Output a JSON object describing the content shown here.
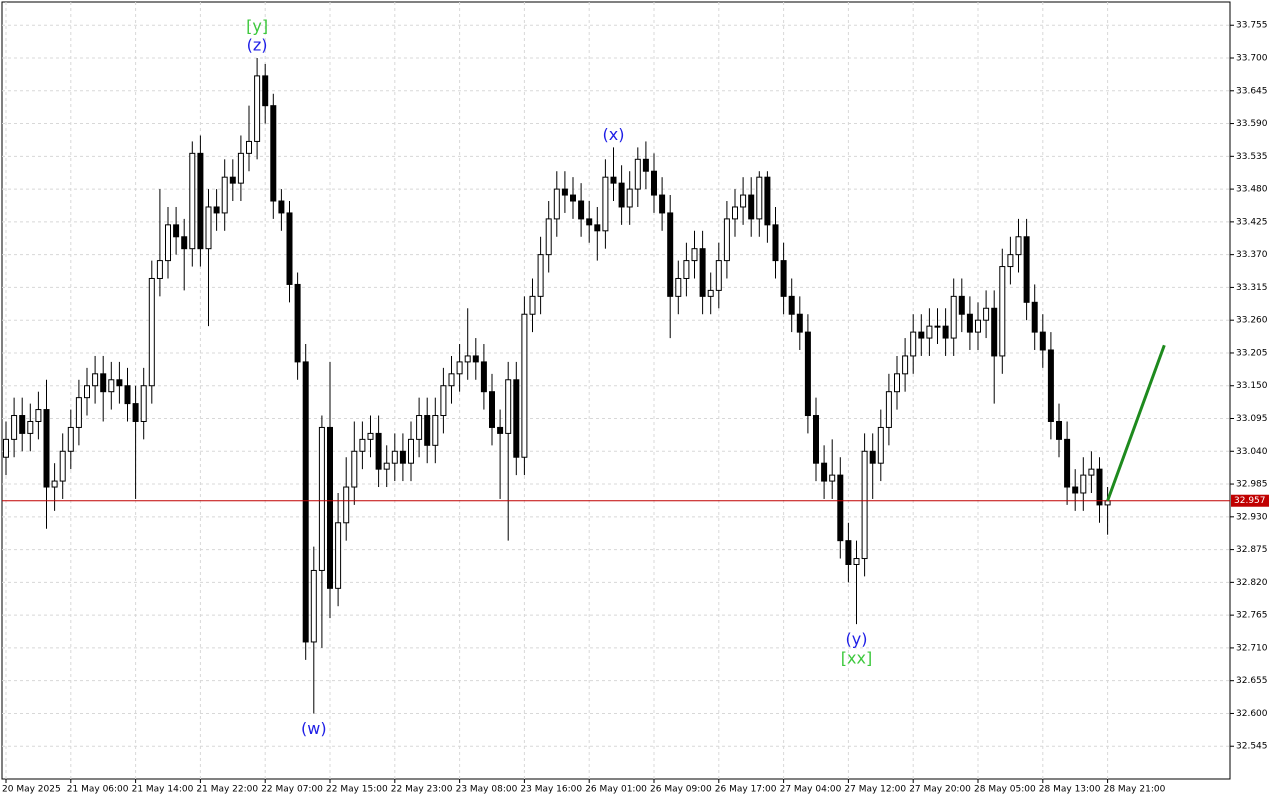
{
  "chart_data": {
    "type": "candlestick",
    "categories": [
      "20 May 2025",
      null,
      null,
      null,
      null,
      null,
      null,
      null,
      "21 May 06:00",
      null,
      null,
      null,
      null,
      null,
      null,
      null,
      "21 May 14:00",
      null,
      null,
      null,
      null,
      null,
      null,
      null,
      "21 May 22:00",
      null,
      null,
      null,
      null,
      null,
      null,
      null,
      "22 May 07:00",
      null,
      null,
      null,
      null,
      null,
      null,
      null,
      "22 May 15:00",
      null,
      null,
      null,
      null,
      null,
      null,
      null,
      "22 May 23:00",
      null,
      null,
      null,
      null,
      null,
      null,
      null,
      "23 May 08:00",
      null,
      null,
      null,
      null,
      null,
      null,
      null,
      "23 May 16:00",
      null,
      null,
      null,
      null,
      null,
      null,
      null,
      "26 May 01:00",
      null,
      null,
      null,
      null,
      null,
      null,
      null,
      "26 May 09:00",
      null,
      null,
      null,
      null,
      null,
      null,
      null,
      "26 May 17:00",
      null,
      null,
      null,
      null,
      null,
      null,
      null,
      "27 May 04:00",
      null,
      null,
      null,
      null,
      null,
      null,
      null,
      "27 May 12:00",
      null,
      null,
      null,
      null,
      null,
      null,
      null,
      "27 May 20:00",
      null,
      null,
      null,
      null,
      null,
      null,
      null,
      "28 May 05:00",
      null,
      null,
      null,
      null,
      null,
      null,
      null,
      "28 May 13:00",
      null,
      null,
      null,
      null,
      null,
      null,
      null,
      "28 May 21:00"
    ],
    "open": [
      33.03,
      33.06,
      33.1,
      33.07,
      33.09,
      33.11,
      32.98,
      32.99,
      33.04,
      33.08,
      33.13,
      33.15,
      33.17,
      33.14,
      33.16,
      33.15,
      33.12,
      33.09,
      33.15,
      33.33,
      33.36,
      33.42,
      33.4,
      33.38,
      33.54,
      33.38,
      33.45,
      33.44,
      33.5,
      33.49,
      33.54,
      33.56,
      33.67,
      33.62,
      33.46,
      33.44,
      33.32,
      33.19,
      32.72,
      32.84,
      33.08,
      32.81,
      32.92,
      32.98,
      33.04,
      33.06,
      33.07,
      33.01,
      33.02,
      33.04,
      33.02,
      33.06,
      33.1,
      33.05,
      33.1,
      33.15,
      33.17,
      33.19,
      33.2,
      33.19,
      33.14,
      33.08,
      33.07,
      33.16,
      33.03,
      33.27,
      33.3,
      33.37,
      33.43,
      33.48,
      33.47,
      33.46,
      33.43,
      33.42,
      33.41,
      33.5,
      33.49,
      33.45,
      33.48,
      33.53,
      33.51,
      33.47,
      33.44,
      33.3,
      33.33,
      33.36,
      33.38,
      33.3,
      33.31,
      33.36,
      33.43,
      33.45,
      33.47,
      33.43,
      33.5,
      33.42,
      33.36,
      33.3,
      33.27,
      33.24,
      33.1,
      33.02,
      32.99,
      33.0,
      32.89,
      32.85,
      32.86,
      33.04,
      33.02,
      33.08,
      33.14,
      33.17,
      33.2,
      33.24,
      33.23,
      33.25,
      33.25,
      33.23,
      33.3,
      33.27,
      33.24,
      33.26,
      33.28,
      33.2,
      33.35,
      33.37,
      33.4,
      33.29,
      33.24,
      33.21,
      33.09,
      33.06,
      32.98,
      32.97,
      33.0,
      33.01,
      32.95
    ],
    "high": [
      33.09,
      33.13,
      33.13,
      33.12,
      33.14,
      33.16,
      33.02,
      33.07,
      33.11,
      33.16,
      33.18,
      33.2,
      33.2,
      33.19,
      33.19,
      33.18,
      33.15,
      33.18,
      33.36,
      33.48,
      33.45,
      33.45,
      33.43,
      33.56,
      33.57,
      33.48,
      33.48,
      33.53,
      33.53,
      33.57,
      33.62,
      33.7,
      33.69,
      33.64,
      33.48,
      33.46,
      33.34,
      33.22,
      32.88,
      33.1,
      33.19,
      32.97,
      33.03,
      33.09,
      33.09,
      33.1,
      33.1,
      33.05,
      33.07,
      33.07,
      33.09,
      33.13,
      33.13,
      33.13,
      33.18,
      33.2,
      33.22,
      33.28,
      33.23,
      33.22,
      33.17,
      33.11,
      33.19,
      33.19,
      33.3,
      33.33,
      33.4,
      33.46,
      33.51,
      33.51,
      33.5,
      33.49,
      33.46,
      33.45,
      33.53,
      33.55,
      33.52,
      33.51,
      33.55,
      33.56,
      33.54,
      33.5,
      33.47,
      33.36,
      33.39,
      33.41,
      33.41,
      33.34,
      33.39,
      33.46,
      33.48,
      33.5,
      33.5,
      33.51,
      33.51,
      33.45,
      33.39,
      33.33,
      33.3,
      33.27,
      33.13,
      33.05,
      33.06,
      33.03,
      32.92,
      32.89,
      33.07,
      33.07,
      33.11,
      33.17,
      33.2,
      33.23,
      33.27,
      33.27,
      33.28,
      33.28,
      33.28,
      33.33,
      33.33,
      33.3,
      33.29,
      33.31,
      33.31,
      33.38,
      33.4,
      33.43,
      33.43,
      33.32,
      33.27,
      33.24,
      33.12,
      33.09,
      33.01,
      33.03,
      33.04,
      33.03,
      32.98
    ],
    "low": [
      33.0,
      33.03,
      33.04,
      33.04,
      33.06,
      32.91,
      32.94,
      32.96,
      33.01,
      33.05,
      33.1,
      33.12,
      33.09,
      33.11,
      33.12,
      33.09,
      32.96,
      33.06,
      33.12,
      33.3,
      33.33,
      33.37,
      33.31,
      33.35,
      33.35,
      33.25,
      33.41,
      33.41,
      33.46,
      33.46,
      33.51,
      33.53,
      33.59,
      33.43,
      33.41,
      33.29,
      33.16,
      32.69,
      32.6,
      32.71,
      32.76,
      32.78,
      32.89,
      32.95,
      33.01,
      33.03,
      32.98,
      32.98,
      32.99,
      32.99,
      32.99,
      33.03,
      33.02,
      33.02,
      33.07,
      33.12,
      33.14,
      33.16,
      33.16,
      33.11,
      33.05,
      32.96,
      32.89,
      33.0,
      33.0,
      33.24,
      33.27,
      33.34,
      33.4,
      33.44,
      33.43,
      33.4,
      33.39,
      33.36,
      33.38,
      33.46,
      33.42,
      33.42,
      33.45,
      33.48,
      33.44,
      33.41,
      33.23,
      33.27,
      33.3,
      33.33,
      33.27,
      33.27,
      33.28,
      33.33,
      33.4,
      33.42,
      33.4,
      33.4,
      33.39,
      33.33,
      33.27,
      33.24,
      33.21,
      33.07,
      32.99,
      32.96,
      32.96,
      32.86,
      32.82,
      32.75,
      32.83,
      32.96,
      32.99,
      33.05,
      33.11,
      33.14,
      33.17,
      33.2,
      33.2,
      33.22,
      33.2,
      33.2,
      33.24,
      33.21,
      33.21,
      33.23,
      33.12,
      33.17,
      33.32,
      33.34,
      33.26,
      33.21,
      33.18,
      33.06,
      33.03,
      32.95,
      32.94,
      32.94,
      32.97,
      32.92,
      32.9
    ],
    "close": [
      33.06,
      33.1,
      33.07,
      33.09,
      33.11,
      32.98,
      32.99,
      33.04,
      33.08,
      33.13,
      33.15,
      33.17,
      33.14,
      33.16,
      33.15,
      33.12,
      33.09,
      33.15,
      33.33,
      33.36,
      33.42,
      33.4,
      33.38,
      33.54,
      33.38,
      33.45,
      33.44,
      33.5,
      33.49,
      33.54,
      33.56,
      33.67,
      33.62,
      33.46,
      33.44,
      33.32,
      33.19,
      32.72,
      32.84,
      33.08,
      32.81,
      32.92,
      32.98,
      33.04,
      33.06,
      33.07,
      33.01,
      33.02,
      33.04,
      33.02,
      33.06,
      33.1,
      33.05,
      33.1,
      33.15,
      33.17,
      33.19,
      33.2,
      33.19,
      33.14,
      33.08,
      33.07,
      33.16,
      33.03,
      33.27,
      33.3,
      33.37,
      33.43,
      33.48,
      33.47,
      33.46,
      33.43,
      33.42,
      33.41,
      33.5,
      33.49,
      33.45,
      33.48,
      33.53,
      33.51,
      33.47,
      33.44,
      33.3,
      33.33,
      33.36,
      33.38,
      33.3,
      33.31,
      33.36,
      33.43,
      33.45,
      33.47,
      33.43,
      33.5,
      33.42,
      33.36,
      33.3,
      33.27,
      33.24,
      33.1,
      33.02,
      32.99,
      33.0,
      32.89,
      32.85,
      32.86,
      33.04,
      33.02,
      33.08,
      33.14,
      33.17,
      33.2,
      33.24,
      33.23,
      33.25,
      33.25,
      33.23,
      33.3,
      33.27,
      33.24,
      33.26,
      33.28,
      33.2,
      33.35,
      33.37,
      33.4,
      33.29,
      33.24,
      33.21,
      33.09,
      33.06,
      32.98,
      32.97,
      33.0,
      33.01,
      32.95,
      32.957
    ],
    "up_color": "#ffffff",
    "down_color": "#000000",
    "ylim": [
      32.49,
      33.794
    ],
    "yticks": [
      {
        "value": 33.755,
        "label": "33.755"
      },
      {
        "value": 33.7,
        "label": "33.700"
      },
      {
        "value": 33.645,
        "label": "33.645"
      },
      {
        "value": 33.59,
        "label": "33.590"
      },
      {
        "value": 33.535,
        "label": "33.535"
      },
      {
        "value": 33.48,
        "label": "33.480"
      },
      {
        "value": 33.425,
        "label": "33.425"
      },
      {
        "value": 33.37,
        "label": "33.370"
      },
      {
        "value": 33.315,
        "label": "33.315"
      },
      {
        "value": 33.26,
        "label": "33.260"
      },
      {
        "value": 33.205,
        "label": "33.205"
      },
      {
        "value": 33.15,
        "label": "33.150"
      },
      {
        "value": 33.095,
        "label": "33.095"
      },
      {
        "value": 33.04,
        "label": "33.040"
      },
      {
        "value": 32.985,
        "label": "32.985"
      },
      {
        "value": 32.93,
        "label": "32.930"
      },
      {
        "value": 32.875,
        "label": "32.875"
      },
      {
        "value": 32.82,
        "label": "32.820"
      },
      {
        "value": 32.765,
        "label": "32.765"
      },
      {
        "value": 32.71,
        "label": "32.710"
      },
      {
        "value": 32.655,
        "label": "32.655"
      },
      {
        "value": 32.6,
        "label": "32.600"
      },
      {
        "value": 32.545,
        "label": "32.545"
      }
    ],
    "grid": true,
    "last_price": 32.957,
    "last_price_color": "#c00000",
    "projection": {
      "x": [
        136,
        143
      ],
      "values": [
        32.957,
        33.218
      ],
      "color": "#1e8a1e"
    },
    "annotations": [
      {
        "text": "[y]",
        "index": 31,
        "position": "above",
        "level": 2,
        "color": "#3cc83c"
      },
      {
        "text": "(z)",
        "index": 31,
        "position": "above",
        "level": 1,
        "color": "#1e1ee6"
      },
      {
        "text": "(x)",
        "index": 75,
        "position": "above",
        "level": 1,
        "color": "#1e1ee6"
      },
      {
        "text": "(w)",
        "index": 38,
        "position": "below",
        "level": 1,
        "color": "#1e1ee6"
      },
      {
        "text": "(y)",
        "index": 105,
        "position": "below",
        "level": 1,
        "color": "#1e1ee6"
      },
      {
        "text": "[xx]",
        "index": 105,
        "position": "below",
        "level": 2,
        "color": "#3cc83c"
      }
    ]
  }
}
